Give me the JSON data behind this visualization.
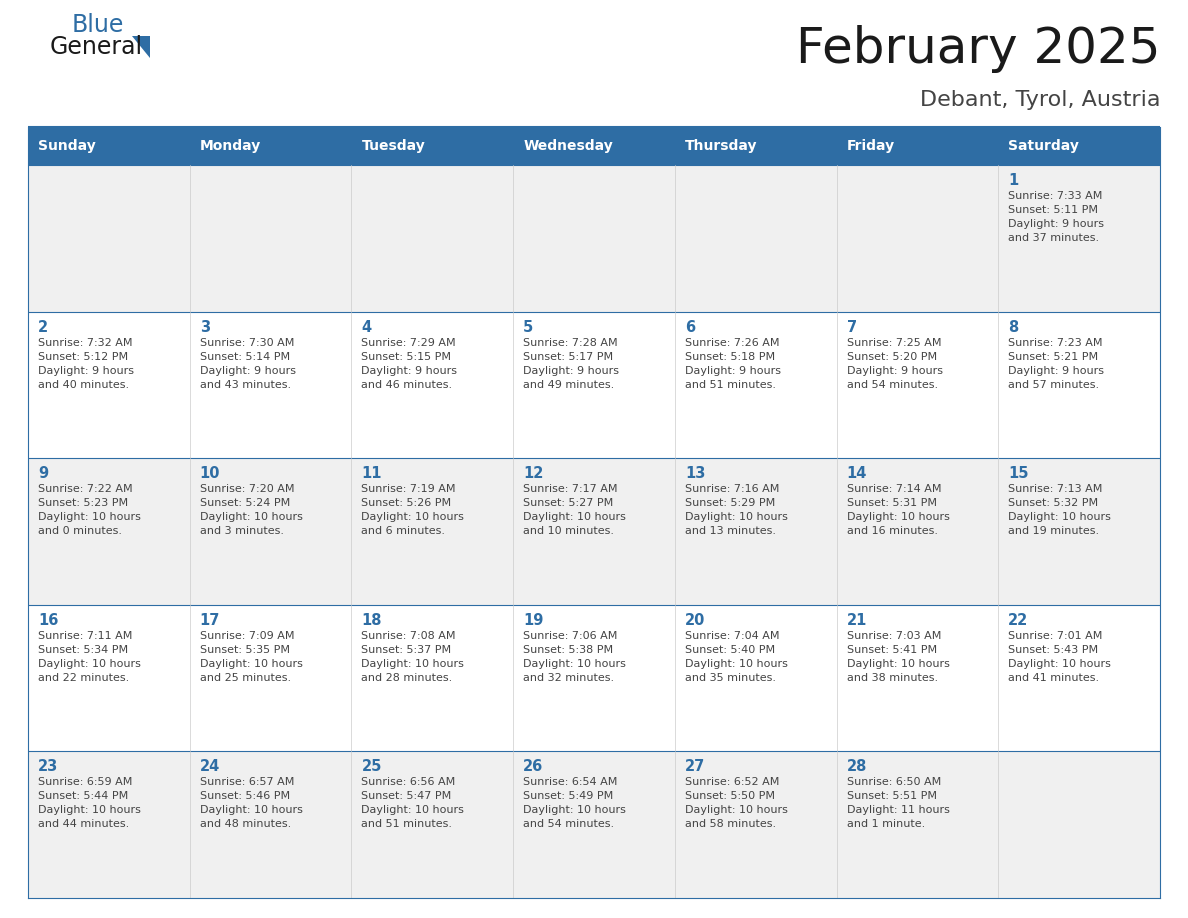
{
  "title": "February 2025",
  "subtitle": "Debant, Tyrol, Austria",
  "days_of_week": [
    "Sunday",
    "Monday",
    "Tuesday",
    "Wednesday",
    "Thursday",
    "Friday",
    "Saturday"
  ],
  "header_bg": "#2E6DA4",
  "header_text_color": "#FFFFFF",
  "cell_bg_row0": "#F0F0F0",
  "cell_bg_row1": "#FFFFFF",
  "cell_border_color": "#2E6DA4",
  "day_number_color": "#2E6DA4",
  "text_color": "#444444",
  "title_color": "#1a1a1a",
  "subtitle_color": "#444444",
  "logo_general_color": "#1a1a1a",
  "logo_blue_color": "#2E6DA4",
  "calendar_data": [
    [
      null,
      null,
      null,
      null,
      null,
      null,
      {
        "day": "1",
        "sunrise": "7:33 AM",
        "sunset": "5:11 PM",
        "daylight_line1": "Daylight: 9 hours",
        "daylight_line2": "and 37 minutes."
      }
    ],
    [
      {
        "day": "2",
        "sunrise": "7:32 AM",
        "sunset": "5:12 PM",
        "daylight_line1": "Daylight: 9 hours",
        "daylight_line2": "and 40 minutes."
      },
      {
        "day": "3",
        "sunrise": "7:30 AM",
        "sunset": "5:14 PM",
        "daylight_line1": "Daylight: 9 hours",
        "daylight_line2": "and 43 minutes."
      },
      {
        "day": "4",
        "sunrise": "7:29 AM",
        "sunset": "5:15 PM",
        "daylight_line1": "Daylight: 9 hours",
        "daylight_line2": "and 46 minutes."
      },
      {
        "day": "5",
        "sunrise": "7:28 AM",
        "sunset": "5:17 PM",
        "daylight_line1": "Daylight: 9 hours",
        "daylight_line2": "and 49 minutes."
      },
      {
        "day": "6",
        "sunrise": "7:26 AM",
        "sunset": "5:18 PM",
        "daylight_line1": "Daylight: 9 hours",
        "daylight_line2": "and 51 minutes."
      },
      {
        "day": "7",
        "sunrise": "7:25 AM",
        "sunset": "5:20 PM",
        "daylight_line1": "Daylight: 9 hours",
        "daylight_line2": "and 54 minutes."
      },
      {
        "day": "8",
        "sunrise": "7:23 AM",
        "sunset": "5:21 PM",
        "daylight_line1": "Daylight: 9 hours",
        "daylight_line2": "and 57 minutes."
      }
    ],
    [
      {
        "day": "9",
        "sunrise": "7:22 AM",
        "sunset": "5:23 PM",
        "daylight_line1": "Daylight: 10 hours",
        "daylight_line2": "and 0 minutes."
      },
      {
        "day": "10",
        "sunrise": "7:20 AM",
        "sunset": "5:24 PM",
        "daylight_line1": "Daylight: 10 hours",
        "daylight_line2": "and 3 minutes."
      },
      {
        "day": "11",
        "sunrise": "7:19 AM",
        "sunset": "5:26 PM",
        "daylight_line1": "Daylight: 10 hours",
        "daylight_line2": "and 6 minutes."
      },
      {
        "day": "12",
        "sunrise": "7:17 AM",
        "sunset": "5:27 PM",
        "daylight_line1": "Daylight: 10 hours",
        "daylight_line2": "and 10 minutes."
      },
      {
        "day": "13",
        "sunrise": "7:16 AM",
        "sunset": "5:29 PM",
        "daylight_line1": "Daylight: 10 hours",
        "daylight_line2": "and 13 minutes."
      },
      {
        "day": "14",
        "sunrise": "7:14 AM",
        "sunset": "5:31 PM",
        "daylight_line1": "Daylight: 10 hours",
        "daylight_line2": "and 16 minutes."
      },
      {
        "day": "15",
        "sunrise": "7:13 AM",
        "sunset": "5:32 PM",
        "daylight_line1": "Daylight: 10 hours",
        "daylight_line2": "and 19 minutes."
      }
    ],
    [
      {
        "day": "16",
        "sunrise": "7:11 AM",
        "sunset": "5:34 PM",
        "daylight_line1": "Daylight: 10 hours",
        "daylight_line2": "and 22 minutes."
      },
      {
        "day": "17",
        "sunrise": "7:09 AM",
        "sunset": "5:35 PM",
        "daylight_line1": "Daylight: 10 hours",
        "daylight_line2": "and 25 minutes."
      },
      {
        "day": "18",
        "sunrise": "7:08 AM",
        "sunset": "5:37 PM",
        "daylight_line1": "Daylight: 10 hours",
        "daylight_line2": "and 28 minutes."
      },
      {
        "day": "19",
        "sunrise": "7:06 AM",
        "sunset": "5:38 PM",
        "daylight_line1": "Daylight: 10 hours",
        "daylight_line2": "and 32 minutes."
      },
      {
        "day": "20",
        "sunrise": "7:04 AM",
        "sunset": "5:40 PM",
        "daylight_line1": "Daylight: 10 hours",
        "daylight_line2": "and 35 minutes."
      },
      {
        "day": "21",
        "sunrise": "7:03 AM",
        "sunset": "5:41 PM",
        "daylight_line1": "Daylight: 10 hours",
        "daylight_line2": "and 38 minutes."
      },
      {
        "day": "22",
        "sunrise": "7:01 AM",
        "sunset": "5:43 PM",
        "daylight_line1": "Daylight: 10 hours",
        "daylight_line2": "and 41 minutes."
      }
    ],
    [
      {
        "day": "23",
        "sunrise": "6:59 AM",
        "sunset": "5:44 PM",
        "daylight_line1": "Daylight: 10 hours",
        "daylight_line2": "and 44 minutes."
      },
      {
        "day": "24",
        "sunrise": "6:57 AM",
        "sunset": "5:46 PM",
        "daylight_line1": "Daylight: 10 hours",
        "daylight_line2": "and 48 minutes."
      },
      {
        "day": "25",
        "sunrise": "6:56 AM",
        "sunset": "5:47 PM",
        "daylight_line1": "Daylight: 10 hours",
        "daylight_line2": "and 51 minutes."
      },
      {
        "day": "26",
        "sunrise": "6:54 AM",
        "sunset": "5:49 PM",
        "daylight_line1": "Daylight: 10 hours",
        "daylight_line2": "and 54 minutes."
      },
      {
        "day": "27",
        "sunrise": "6:52 AM",
        "sunset": "5:50 PM",
        "daylight_line1": "Daylight: 10 hours",
        "daylight_line2": "and 58 minutes."
      },
      {
        "day": "28",
        "sunrise": "6:50 AM",
        "sunset": "5:51 PM",
        "daylight_line1": "Daylight: 11 hours",
        "daylight_line2": "and 1 minute."
      },
      null
    ]
  ]
}
